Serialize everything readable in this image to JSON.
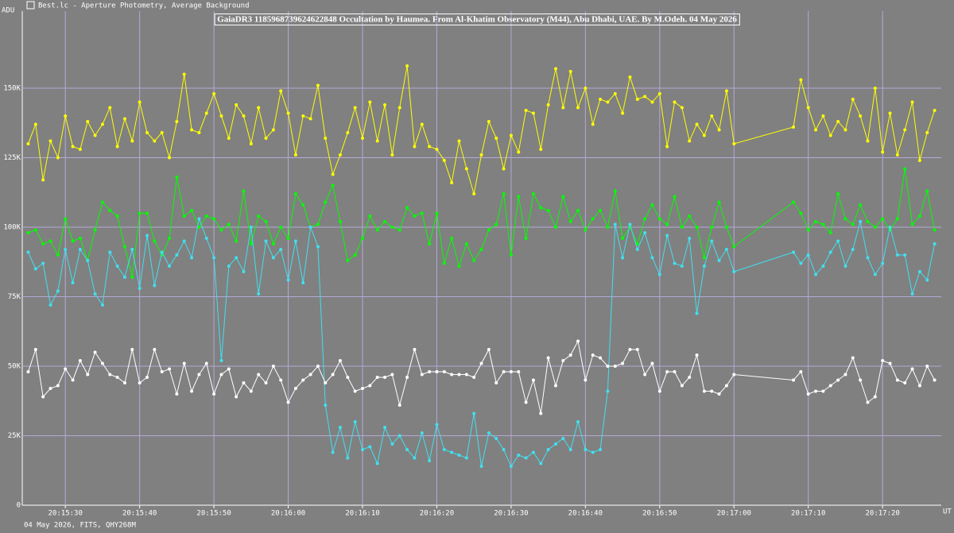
{
  "window_title": "Best.lc - Aperture Photometry, Average Background",
  "footer": "04 May 2026, FITS, QHY268M",
  "chart_data": {
    "type": "line",
    "title": "GaiaDR3 1185968739624622848 Occultation by Haumea. From Al-Khatim Observatory (M44), Abu Dhabi, UAE. By M.Odeh. 04 May 2026",
    "y_label": "ADU",
    "x_label": "UT",
    "grid": true,
    "xlim": [
      72924.2,
      73047.9
    ],
    "ylim": [
      0,
      177700
    ],
    "xticks": [
      {
        "value": 72930,
        "label": "20:15:30"
      },
      {
        "value": 72940,
        "label": "20:15:40"
      },
      {
        "value": 72950,
        "label": "20:15:50"
      },
      {
        "value": 72960,
        "label": "20:16:00"
      },
      {
        "value": 72970,
        "label": "20:16:10"
      },
      {
        "value": 72980,
        "label": "20:16:20"
      },
      {
        "value": 72990,
        "label": "20:16:30"
      },
      {
        "value": 73000,
        "label": "20:16:40"
      },
      {
        "value": 73010,
        "label": "20:16:50"
      },
      {
        "value": 73020,
        "label": "20:17:00"
      },
      {
        "value": 73030,
        "label": "20:17:10"
      },
      {
        "value": 73040,
        "label": "20:17:20"
      }
    ],
    "yticks": [
      0,
      {
        "value": 25000,
        "label": "25K"
      },
      {
        "value": 50000,
        "label": "50K"
      },
      {
        "value": 75000,
        "label": "75K"
      },
      {
        "value": 100000,
        "label": "100K"
      },
      {
        "value": 125000,
        "label": "125K"
      },
      {
        "value": 150000,
        "label": "150K"
      }
    ],
    "x": [
      72925,
      72926,
      72927,
      72928,
      72929,
      72930,
      72931,
      72932,
      72933,
      72934,
      72935,
      72936,
      72937,
      72938,
      72939,
      72940,
      72941,
      72942,
      72943,
      72944,
      72945,
      72946,
      72947,
      72948,
      72949,
      72950,
      72951,
      72952,
      72953,
      72954,
      72955,
      72956,
      72957,
      72958,
      72959,
      72960,
      72961,
      72962,
      72963,
      72964,
      72965,
      72966,
      72967,
      72968,
      72969,
      72970,
      72971,
      72972,
      72973,
      72974,
      72975,
      72976,
      72977,
      72978,
      72979,
      72980,
      72981,
      72982,
      72983,
      72984,
      72985,
      72986,
      72987,
      72988,
      72989,
      72990,
      72991,
      72992,
      72993,
      72994,
      72995,
      72996,
      72997,
      72998,
      72999,
      73000,
      73001,
      73002,
      73003,
      73004,
      73005,
      73006,
      73007,
      73008,
      73009,
      73010,
      73011,
      73012,
      73013,
      73014,
      73015,
      73016,
      73017,
      73018,
      73019,
      73020,
      73028,
      73029,
      73030,
      73031,
      73032,
      73033,
      73034,
      73035,
      73036,
      73037,
      73038,
      73039,
      73040,
      73041,
      73042,
      73043,
      73044,
      73045,
      73046,
      73047
    ],
    "series": [
      {
        "color": "#ffff00",
        "values": [
          130000,
          137000,
          117000,
          131000,
          125000,
          140000,
          129000,
          128000,
          138000,
          133000,
          137000,
          143000,
          129000,
          139000,
          131000,
          145000,
          134000,
          131000,
          134000,
          125000,
          138000,
          155000,
          135000,
          134000,
          141000,
          148000,
          140000,
          132000,
          144000,
          140000,
          130000,
          143000,
          132000,
          135000,
          149000,
          141000,
          126000,
          140000,
          139000,
          151000,
          132000,
          119000,
          126000,
          134000,
          143000,
          132000,
          145000,
          131000,
          144000,
          126000,
          143000,
          158000,
          129000,
          137000,
          129000,
          128000,
          124000,
          116000,
          131000,
          121000,
          112000,
          126000,
          138000,
          132000,
          121000,
          133000,
          127000,
          142000,
          141000,
          128000,
          144000,
          157000,
          143000,
          156000,
          143000,
          150000,
          137000,
          146000,
          145000,
          148000,
          141000,
          154000,
          146000,
          147000,
          145000,
          148000,
          129000,
          145000,
          143000,
          131000,
          137000,
          133000,
          140000,
          135000,
          149000,
          130000,
          136000,
          153000,
          143000,
          135000,
          140000,
          133000,
          138000,
          135000,
          146000,
          140000,
          131000,
          150000,
          127000,
          141000,
          126000,
          135000,
          145000,
          124000,
          134000,
          142000
        ]
      },
      {
        "color": "#00ff00",
        "values": [
          98000,
          99000,
          94000,
          95000,
          90000,
          103000,
          95000,
          96000,
          88000,
          99000,
          109000,
          106000,
          104000,
          93000,
          82000,
          105000,
          105000,
          95000,
          90000,
          96000,
          118000,
          104000,
          106000,
          100000,
          104000,
          103000,
          99000,
          101000,
          95000,
          113000,
          94000,
          104000,
          102000,
          94000,
          100000,
          96000,
          112000,
          108000,
          100000,
          101000,
          109000,
          115000,
          102000,
          88000,
          90000,
          96000,
          104000,
          99000,
          102000,
          100000,
          99000,
          107000,
          104000,
          105000,
          94000,
          105000,
          87000,
          96000,
          86000,
          94000,
          88000,
          92000,
          99000,
          101000,
          112000,
          90000,
          111000,
          96000,
          112000,
          107000,
          106000,
          100000,
          111000,
          102000,
          106000,
          99000,
          103000,
          106000,
          100000,
          113000,
          96000,
          100000,
          94000,
          103000,
          108000,
          103000,
          101000,
          111000,
          100000,
          104000,
          100000,
          89000,
          100000,
          109000,
          100000,
          93000,
          109000,
          105000,
          99000,
          102000,
          101000,
          98000,
          112000,
          103000,
          101000,
          108000,
          102000,
          100000,
          103000,
          99000,
          103000,
          121000,
          101000,
          104000,
          113000,
          99000
        ]
      },
      {
        "color": "#40e0f0",
        "values": [
          91000,
          85000,
          87000,
          72000,
          77000,
          92000,
          80000,
          92000,
          88000,
          76000,
          72000,
          91000,
          86000,
          82000,
          92000,
          78000,
          97000,
          79000,
          91000,
          86000,
          90000,
          95000,
          89000,
          103000,
          96000,
          89000,
          52000,
          86000,
          89000,
          84000,
          100000,
          76000,
          95000,
          89000,
          92000,
          81000,
          95000,
          80000,
          100000,
          93000,
          36000,
          19000,
          28000,
          17000,
          30000,
          20000,
          21000,
          15000,
          28000,
          22000,
          25000,
          20000,
          17000,
          26000,
          16000,
          29000,
          20000,
          19000,
          18000,
          17000,
          33000,
          14000,
          26000,
          24000,
          20000,
          14000,
          18000,
          17000,
          19000,
          15000,
          20000,
          22000,
          24000,
          20000,
          30000,
          20000,
          19000,
          20000,
          41000,
          101000,
          89000,
          101000,
          92000,
          98000,
          89000,
          83000,
          97000,
          87000,
          86000,
          96000,
          69000,
          86000,
          95000,
          88000,
          92000,
          84000,
          91000,
          87000,
          90000,
          83000,
          86000,
          91000,
          95000,
          86000,
          92000,
          102000,
          89000,
          83000,
          87000,
          100000,
          90000,
          90000,
          76000,
          84000,
          81000,
          94000
        ]
      },
      {
        "color": "#ffffff",
        "values": [
          48000,
          56000,
          39000,
          42000,
          43000,
          49000,
          45000,
          52000,
          47000,
          55000,
          51000,
          47000,
          46000,
          44000,
          56000,
          44000,
          46000,
          56000,
          48000,
          49000,
          40000,
          51000,
          41000,
          47000,
          51000,
          40000,
          47000,
          49000,
          39000,
          44000,
          41000,
          47000,
          44000,
          50000,
          45000,
          37000,
          42000,
          45000,
          47000,
          50000,
          44000,
          47000,
          52000,
          46000,
          41000,
          42000,
          43000,
          46000,
          46000,
          47000,
          36000,
          46000,
          56000,
          47000,
          48000,
          48000,
          48000,
          47000,
          47000,
          47000,
          46000,
          51000,
          56000,
          44000,
          48000,
          48000,
          48000,
          37000,
          45000,
          33000,
          53000,
          43000,
          52000,
          54000,
          59000,
          45000,
          54000,
          53000,
          50000,
          50000,
          51000,
          56000,
          56000,
          47000,
          51000,
          41000,
          48000,
          48000,
          43000,
          46000,
          54000,
          41000,
          41000,
          40000,
          43000,
          47000,
          45000,
          48000,
          40000,
          41000,
          41000,
          43000,
          45000,
          47000,
          53000,
          45000,
          37000,
          39000,
          52000,
          51000,
          45000,
          44000,
          49000,
          43000,
          50000,
          45000
        ]
      }
    ]
  }
}
